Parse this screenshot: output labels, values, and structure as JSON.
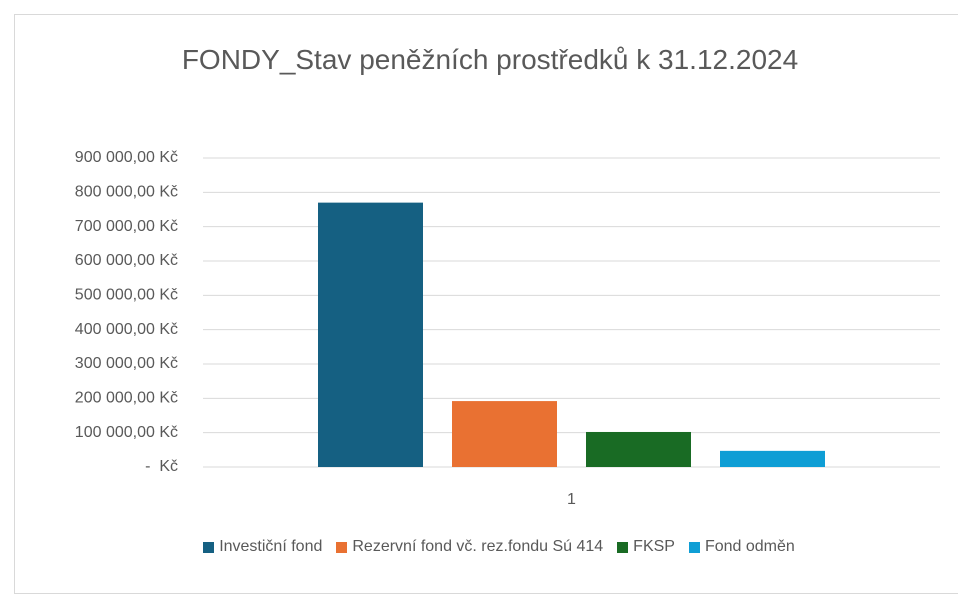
{
  "chart_data": {
    "type": "bar",
    "title": "FONDY_Stav peněžních prostředků k 31.12.2024",
    "categories": [
      "1"
    ],
    "series": [
      {
        "name": "Investiční fond",
        "color": "#156082",
        "values": [
          770000
        ]
      },
      {
        "name": "Rezervní fond vč. rez.fondu Sú 414",
        "color": "#e97132",
        "values": [
          192000
        ]
      },
      {
        "name": "FKSP",
        "color": "#196b24",
        "values": [
          102000
        ]
      },
      {
        "name": "Fond odměn",
        "color": "#0f9ed5",
        "values": [
          47000
        ]
      }
    ],
    "ylim": [
      0,
      900000
    ],
    "yticks": [
      {
        "value": 0,
        "label": "-  Kč"
      },
      {
        "value": 100000,
        "label": "100 000,00 Kč"
      },
      {
        "value": 200000,
        "label": "200 000,00 Kč"
      },
      {
        "value": 300000,
        "label": "300 000,00 Kč"
      },
      {
        "value": 400000,
        "label": "400 000,00 Kč"
      },
      {
        "value": 500000,
        "label": "500 000,00 Kč"
      },
      {
        "value": 600000,
        "label": "600 000,00 Kč"
      },
      {
        "value": 700000,
        "label": "700 000,00 Kč"
      },
      {
        "value": 800000,
        "label": "800 000,00 Kč"
      },
      {
        "value": 900000,
        "label": "900 000,00 Kč"
      }
    ],
    "grid": true,
    "legend": "bottom"
  }
}
